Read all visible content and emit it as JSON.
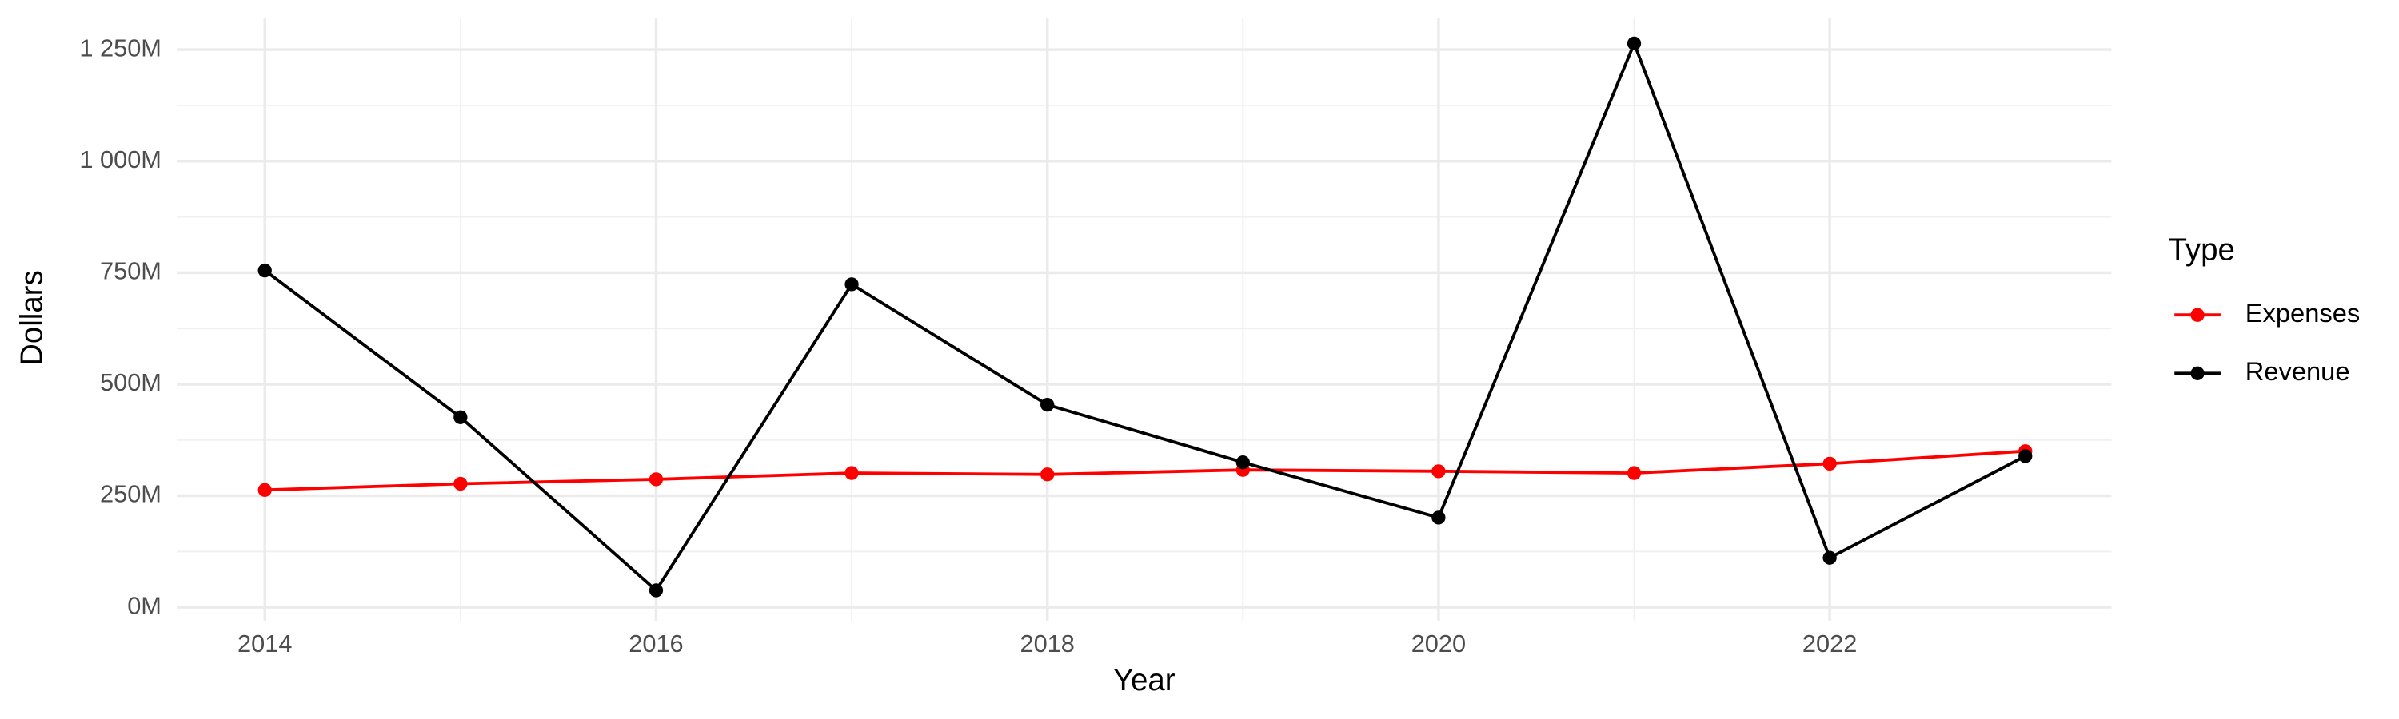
{
  "chart_data": {
    "type": "line",
    "x_label": "Year",
    "y_label": "Dollars",
    "legend_title": "Type",
    "x": [
      2014,
      2015,
      2016,
      2017,
      2018,
      2019,
      2020,
      2021,
      2022,
      2023
    ],
    "series": [
      {
        "name": "Expenses",
        "color": "#ff0000",
        "values": [
          263000000,
          277000000,
          287000000,
          301000000,
          298000000,
          308000000,
          305000000,
          301000000,
          322000000,
          350000000
        ]
      },
      {
        "name": "Revenue",
        "color": "#000000",
        "values": [
          755000000,
          426000000,
          38000000,
          724000000,
          454000000,
          325000000,
          201000000,
          1264000000,
          111000000,
          339000000
        ]
      }
    ],
    "xlim": [
      2013.55,
      2023.44
    ],
    "xticks": [
      2014,
      2016,
      2018,
      2020,
      2022
    ],
    "ylim": [
      -30000000,
      1320000000
    ],
    "yticks": [
      {
        "value": 0,
        "label": "0M"
      },
      {
        "value": 250000000,
        "label": "250M"
      },
      {
        "value": 500000000,
        "label": "500M"
      },
      {
        "value": 750000000,
        "label": "750M"
      },
      {
        "value": 1000000000,
        "label": "1 000M"
      },
      {
        "value": 1250000000,
        "label": "1 250M"
      }
    ],
    "grid": true,
    "legend": "right"
  }
}
